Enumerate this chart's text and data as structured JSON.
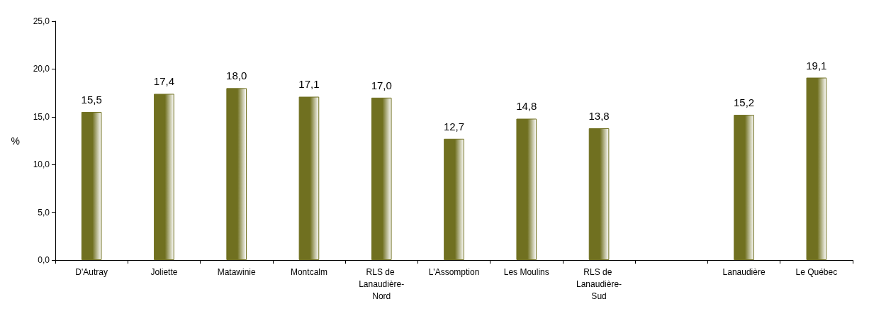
{
  "chart_data": {
    "type": "bar",
    "ylabel": "%",
    "categories": [
      "D'Autray",
      "Joliette",
      "Matawinie",
      "Montcalm",
      "RLS de Lanaudière-Nord",
      "L'Assomption",
      "Les Moulins",
      "RLS de Lanaudière-Sud",
      null,
      "Lanaudière",
      "Le Québec"
    ],
    "values": [
      15.5,
      17.4,
      18.0,
      17.1,
      17.0,
      12.7,
      14.8,
      13.8,
      null,
      15.2,
      19.1
    ],
    "value_labels": [
      "15,5",
      "17,4",
      "18,0",
      "17,1",
      "17,0",
      "12,7",
      "14,8",
      "13,8",
      null,
      "15,2",
      "19,1"
    ],
    "color": "#707020",
    "ylim": [
      0,
      25
    ],
    "yticks": [
      {
        "value": 0,
        "label": "0,0"
      },
      {
        "value": 5,
        "label": "5,0"
      },
      {
        "value": 10,
        "label": "10,0"
      },
      {
        "value": 15,
        "label": "15,0"
      },
      {
        "value": 20,
        "label": "20,0"
      },
      {
        "value": 25,
        "label": "25,0"
      }
    ],
    "grid": false
  }
}
